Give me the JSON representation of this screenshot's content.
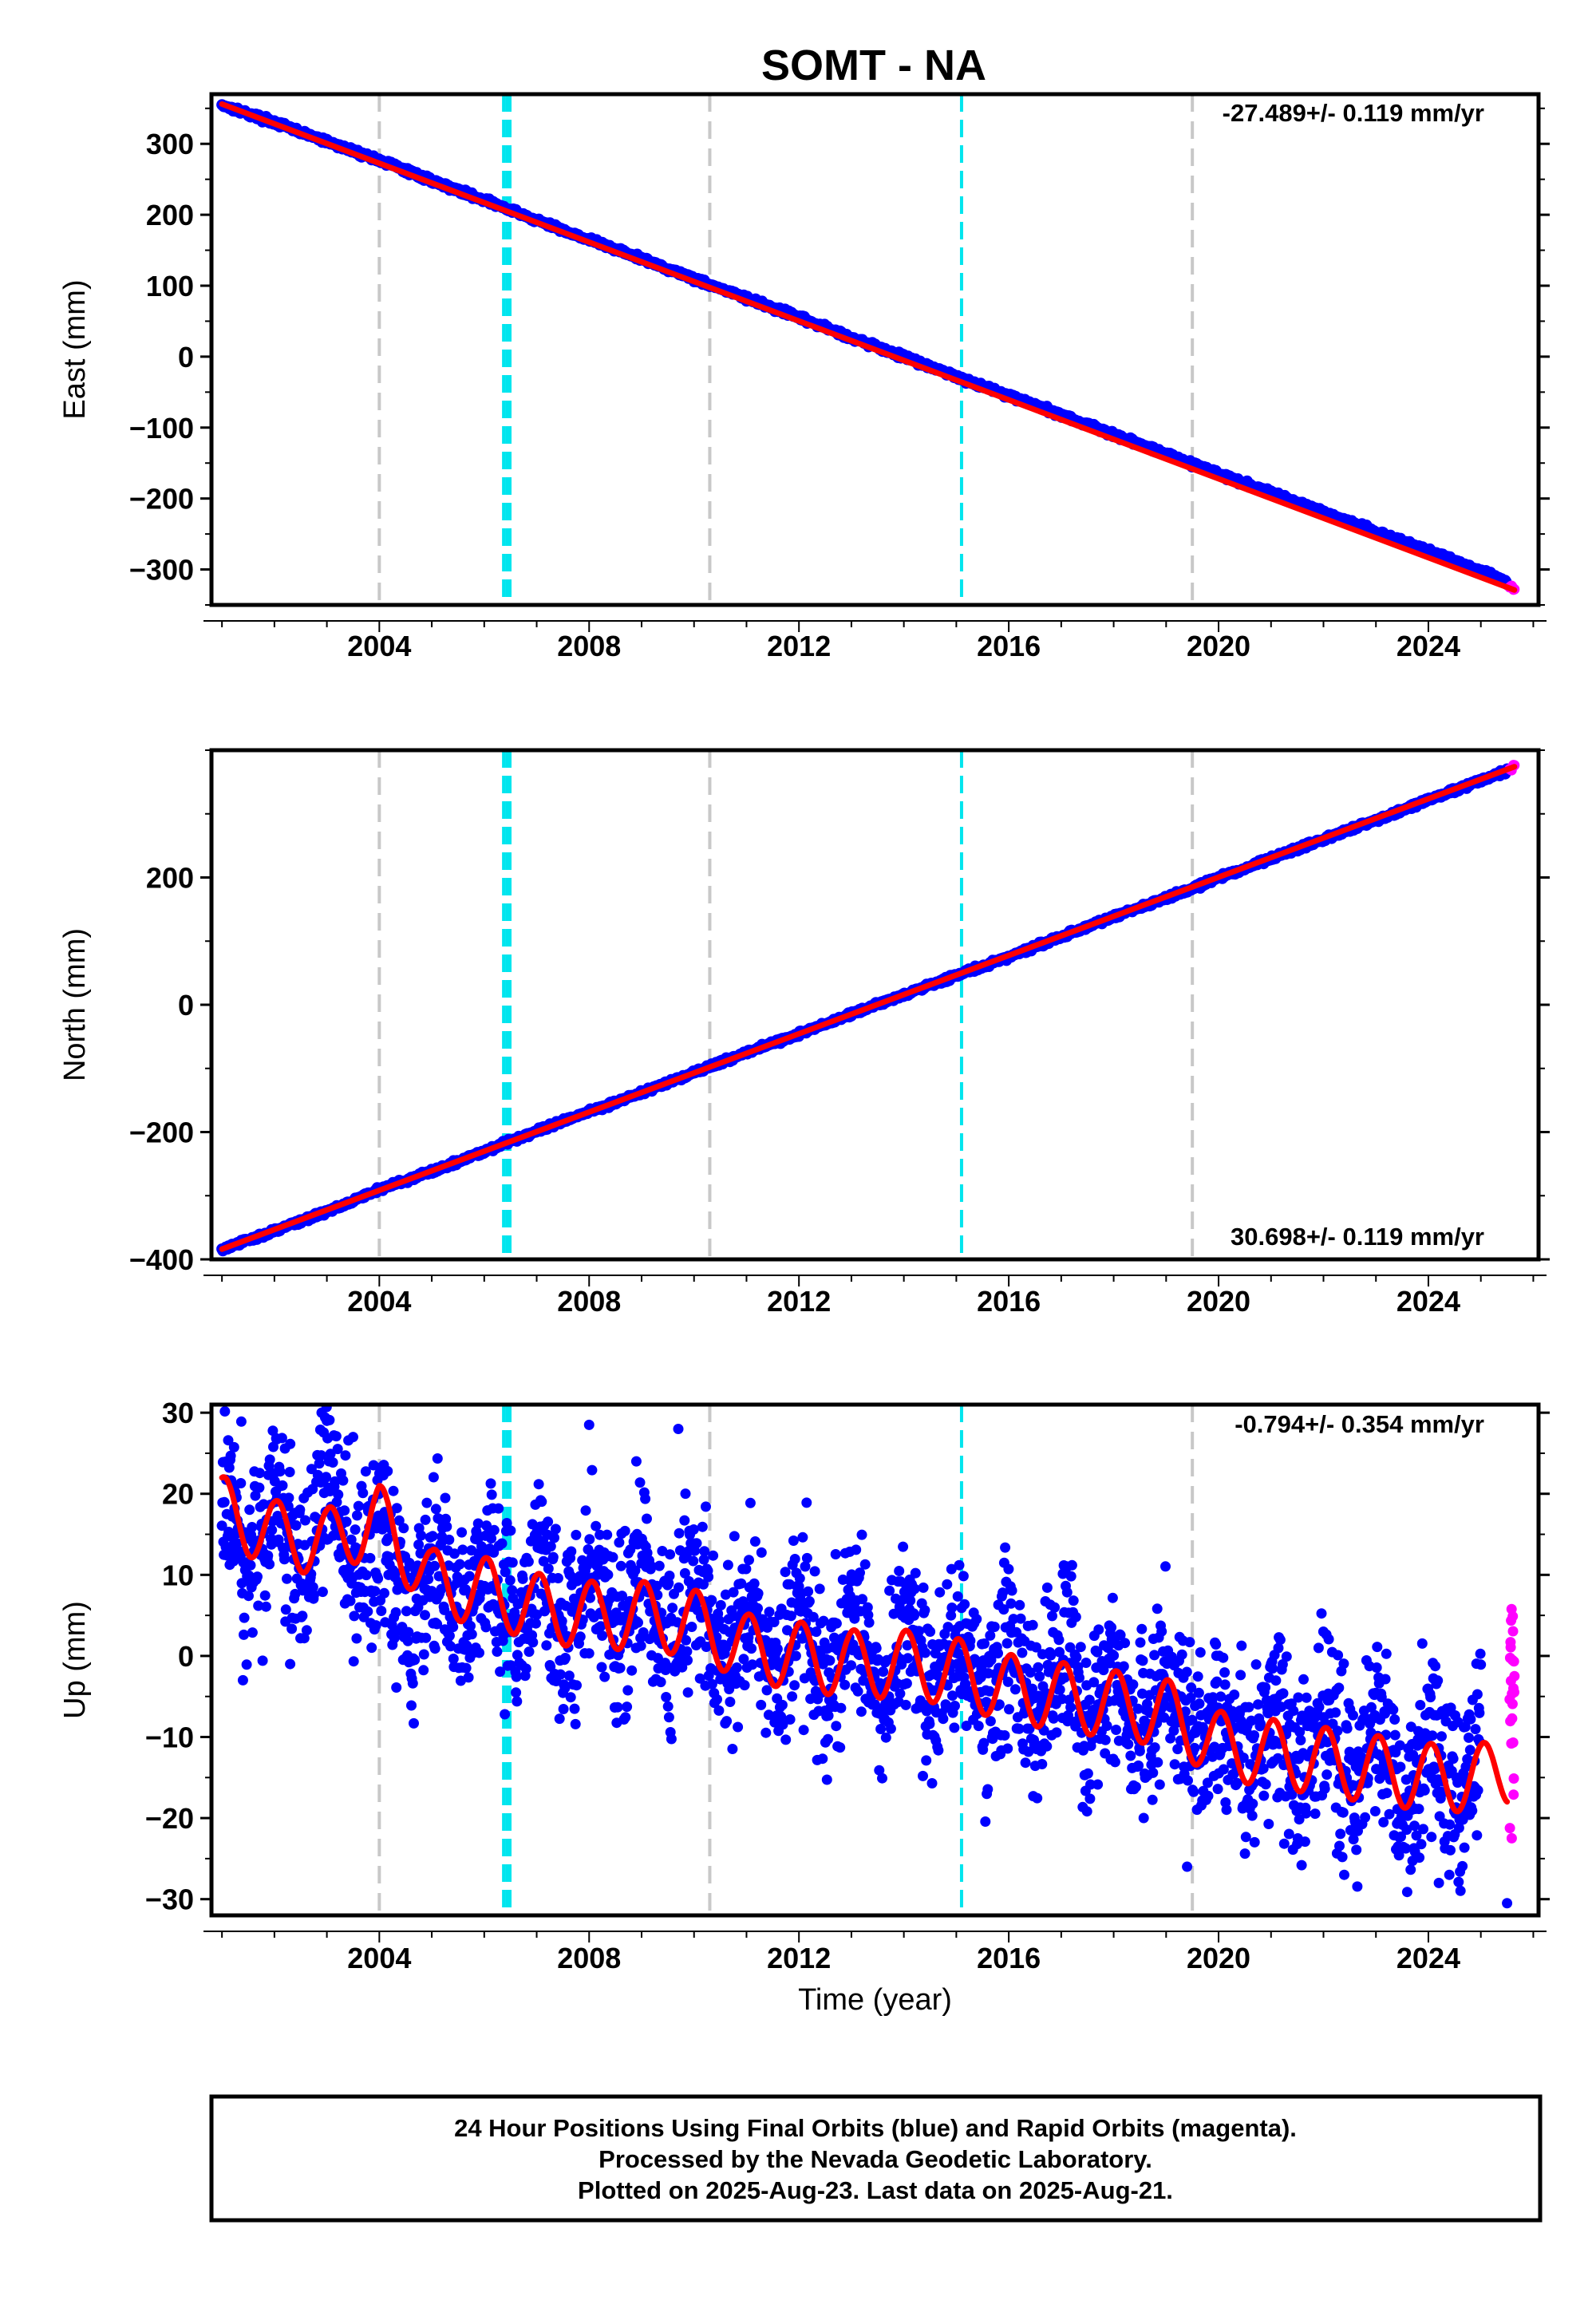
{
  "figure_title": "SOMT - NA",
  "colors": {
    "final_orbits": "#0000ff",
    "rapid_orbits": "#ff00ff",
    "model": "#ff0000",
    "equipment_change": "#c8c8c8",
    "event": "#00e5ee"
  },
  "chart_data": [
    {
      "type": "scatter",
      "panel": "east",
      "ylabel": "East (mm)",
      "rate_text": "-27.489+/- 0.119 mm/yr",
      "xlim": [
        2000.8,
        2026.1
      ],
      "ylim": [
        -350,
        370
      ],
      "x_ticks": [
        2004,
        2008,
        2012,
        2016,
        2020,
        2024
      ],
      "x_tick_labels": [
        "2004",
        "2008",
        "2012",
        "2016",
        "2020",
        "2024"
      ],
      "y_ticks": [
        -300,
        -200,
        -100,
        0,
        100,
        200,
        300
      ],
      "y_tick_labels": [
        "−300",
        "−200",
        "−100",
        "0",
        "100",
        "200",
        "300"
      ],
      "series": [
        {
          "style": "points",
          "color": "final_orbits",
          "x": [
            2001.0,
            2002.0,
            2003.0,
            2004.0,
            2005.0,
            2006.0,
            2007.0,
            2008.0,
            2009.0,
            2010.0,
            2011.0,
            2012.0,
            2013.0,
            2014.0,
            2015.0,
            2016.0,
            2017.0,
            2018.0,
            2019.0,
            2020.0,
            2021.0,
            2022.0,
            2023.0,
            2024.0,
            2025.0,
            2025.5
          ],
          "y": [
            355,
            330,
            303,
            277,
            248,
            221,
            192,
            165,
            138,
            110,
            82,
            55,
            27,
            0,
            -28,
            -55,
            -82,
            -110,
            -137,
            -165,
            -192,
            -219,
            -247,
            -274,
            -302,
            -318
          ]
        },
        {
          "style": "points",
          "color": "rapid_orbits",
          "x": [
            2025.55,
            2025.6,
            2025.64
          ],
          "y": [
            -323,
            -326,
            -329
          ]
        },
        {
          "style": "line",
          "color": "model",
          "x": [
            2001.0,
            2025.64
          ],
          "y": [
            356,
            -329
          ]
        }
      ],
      "vlines": [
        {
          "x": 2004.0,
          "color": "equipment_change"
        },
        {
          "x": 2010.3,
          "color": "equipment_change"
        },
        {
          "x": 2019.5,
          "color": "equipment_change"
        },
        {
          "x": 2006.37,
          "color": "event"
        },
        {
          "x": 2006.43,
          "color": "event"
        },
        {
          "x": 2006.49,
          "color": "event"
        },
        {
          "x": 2015.1,
          "color": "event"
        }
      ]
    },
    {
      "type": "scatter",
      "panel": "north",
      "ylabel": "North (mm)",
      "rate_text": "30.698+/- 0.119 mm/yr",
      "xlim": [
        2000.8,
        2026.1
      ],
      "ylim": [
        -400,
        400
      ],
      "x_ticks": [
        2004,
        2008,
        2012,
        2016,
        2020,
        2024
      ],
      "x_tick_labels": [
        "2004",
        "2008",
        "2012",
        "2016",
        "2020",
        "2024"
      ],
      "y_ticks": [
        -400,
        -200,
        0,
        200
      ],
      "y_tick_labels": [
        "−400",
        "−200",
        "0",
        "200"
      ],
      "series": [
        {
          "style": "points",
          "color": "final_orbits",
          "x": [
            2001.0,
            2002.0,
            2003.0,
            2004.0,
            2005.0,
            2006.0,
            2007.0,
            2008.0,
            2009.0,
            2010.0,
            2011.0,
            2012.0,
            2013.0,
            2014.0,
            2015.0,
            2016.0,
            2017.0,
            2018.0,
            2019.0,
            2020.0,
            2021.0,
            2022.0,
            2023.0,
            2024.0,
            2025.0,
            2025.5
          ],
          "y": [
            -385,
            -355,
            -325,
            -290,
            -262,
            -230,
            -198,
            -168,
            -138,
            -107,
            -75,
            -46,
            -15,
            16,
            46,
            75,
            107,
            138,
            168,
            199,
            230,
            260,
            290,
            322,
            352,
            368
          ]
        },
        {
          "style": "points",
          "color": "rapid_orbits",
          "x": [
            2025.55,
            2025.6,
            2025.64
          ],
          "y": [
            371,
            373,
            375
          ]
        },
        {
          "style": "line",
          "color": "model",
          "x": [
            2001.0,
            2025.64
          ],
          "y": [
            -384,
            374
          ]
        }
      ],
      "vlines": [
        {
          "x": 2004.0,
          "color": "equipment_change"
        },
        {
          "x": 2010.3,
          "color": "equipment_change"
        },
        {
          "x": 2019.5,
          "color": "equipment_change"
        },
        {
          "x": 2006.37,
          "color": "event"
        },
        {
          "x": 2006.43,
          "color": "event"
        },
        {
          "x": 2006.49,
          "color": "event"
        },
        {
          "x": 2015.1,
          "color": "event"
        }
      ]
    },
    {
      "type": "scatter",
      "panel": "up",
      "ylabel": "Up (mm)",
      "xlabel": "Time (year)",
      "rate_text": "-0.794+/- 0.354 mm/yr",
      "xlim": [
        2000.8,
        2026.1
      ],
      "ylim": [
        -32,
        31
      ],
      "x_ticks": [
        2004,
        2008,
        2012,
        2016,
        2020,
        2024
      ],
      "x_tick_labels": [
        "2004",
        "2008",
        "2012",
        "2016",
        "2020",
        "2024"
      ],
      "y_ticks": [
        -30,
        -20,
        -10,
        0,
        10,
        20,
        30
      ],
      "y_tick_labels": [
        "−30",
        "−20",
        "−10",
        "0",
        "10",
        "20",
        "30"
      ],
      "series": [
        {
          "style": "points",
          "color": "final_orbits",
          "x": [
            2001.0,
            2002.0,
            2003.0,
            2004.0,
            2005.0,
            2006.0,
            2007.0,
            2008.0,
            2009.0,
            2010.0,
            2011.0,
            2012.0,
            2013.0,
            2014.0,
            2015.0,
            2016.0,
            2017.0,
            2018.0,
            2019.0,
            2020.0,
            2021.0,
            2022.0,
            2023.0,
            2024.0,
            2025.0
          ],
          "y": [
            15,
            15,
            17,
            11,
            9,
            7,
            7,
            6,
            6,
            5,
            2,
            1,
            1,
            0,
            -1,
            -3,
            -4,
            -5,
            -6,
            -10,
            -11,
            -12,
            -13,
            -15,
            -15
          ]
        },
        {
          "style": "points",
          "color": "rapid_orbits",
          "x": [
            2025.55,
            2025.6,
            2025.64
          ],
          "y": [
            -8,
            -2,
            1
          ]
        },
        {
          "style": "line",
          "color": "model",
          "x": [
            2001.0,
            2002.0,
            2003.0,
            2004.0,
            2005.0,
            2006.0,
            2007.0,
            2008.0,
            2009.0,
            2010.0,
            2011.0,
            2012.0,
            2013.0,
            2014.0,
            2015.0,
            2016.0,
            2017.0,
            2018.0,
            2019.0,
            2020.0,
            2021.0,
            2022.0,
            2023.0,
            2024.0,
            2025.0,
            2025.5
          ],
          "y": [
            18,
            15,
            14,
            17,
            9,
            8,
            6,
            5,
            5,
            4,
            1,
            0,
            -1,
            -1,
            -2,
            -4,
            -5,
            -6,
            -7,
            -11,
            -12,
            -13,
            -14,
            -15,
            -15,
            -14
          ]
        }
      ],
      "vlines": [
        {
          "x": 2004.0,
          "color": "equipment_change"
        },
        {
          "x": 2010.3,
          "color": "equipment_change"
        },
        {
          "x": 2019.5,
          "color": "equipment_change"
        },
        {
          "x": 2006.37,
          "color": "event"
        },
        {
          "x": 2006.43,
          "color": "event"
        },
        {
          "x": 2006.49,
          "color": "event"
        },
        {
          "x": 2015.1,
          "color": "event"
        }
      ]
    }
  ],
  "footer": {
    "line1": "24 Hour Positions Using Final Orbits (blue) and Rapid Orbits (magenta).",
    "line2": "Processed by the Nevada Geodetic Laboratory.",
    "line3": "Plotted on 2025-Aug-23. Last data on 2025-Aug-21."
  }
}
